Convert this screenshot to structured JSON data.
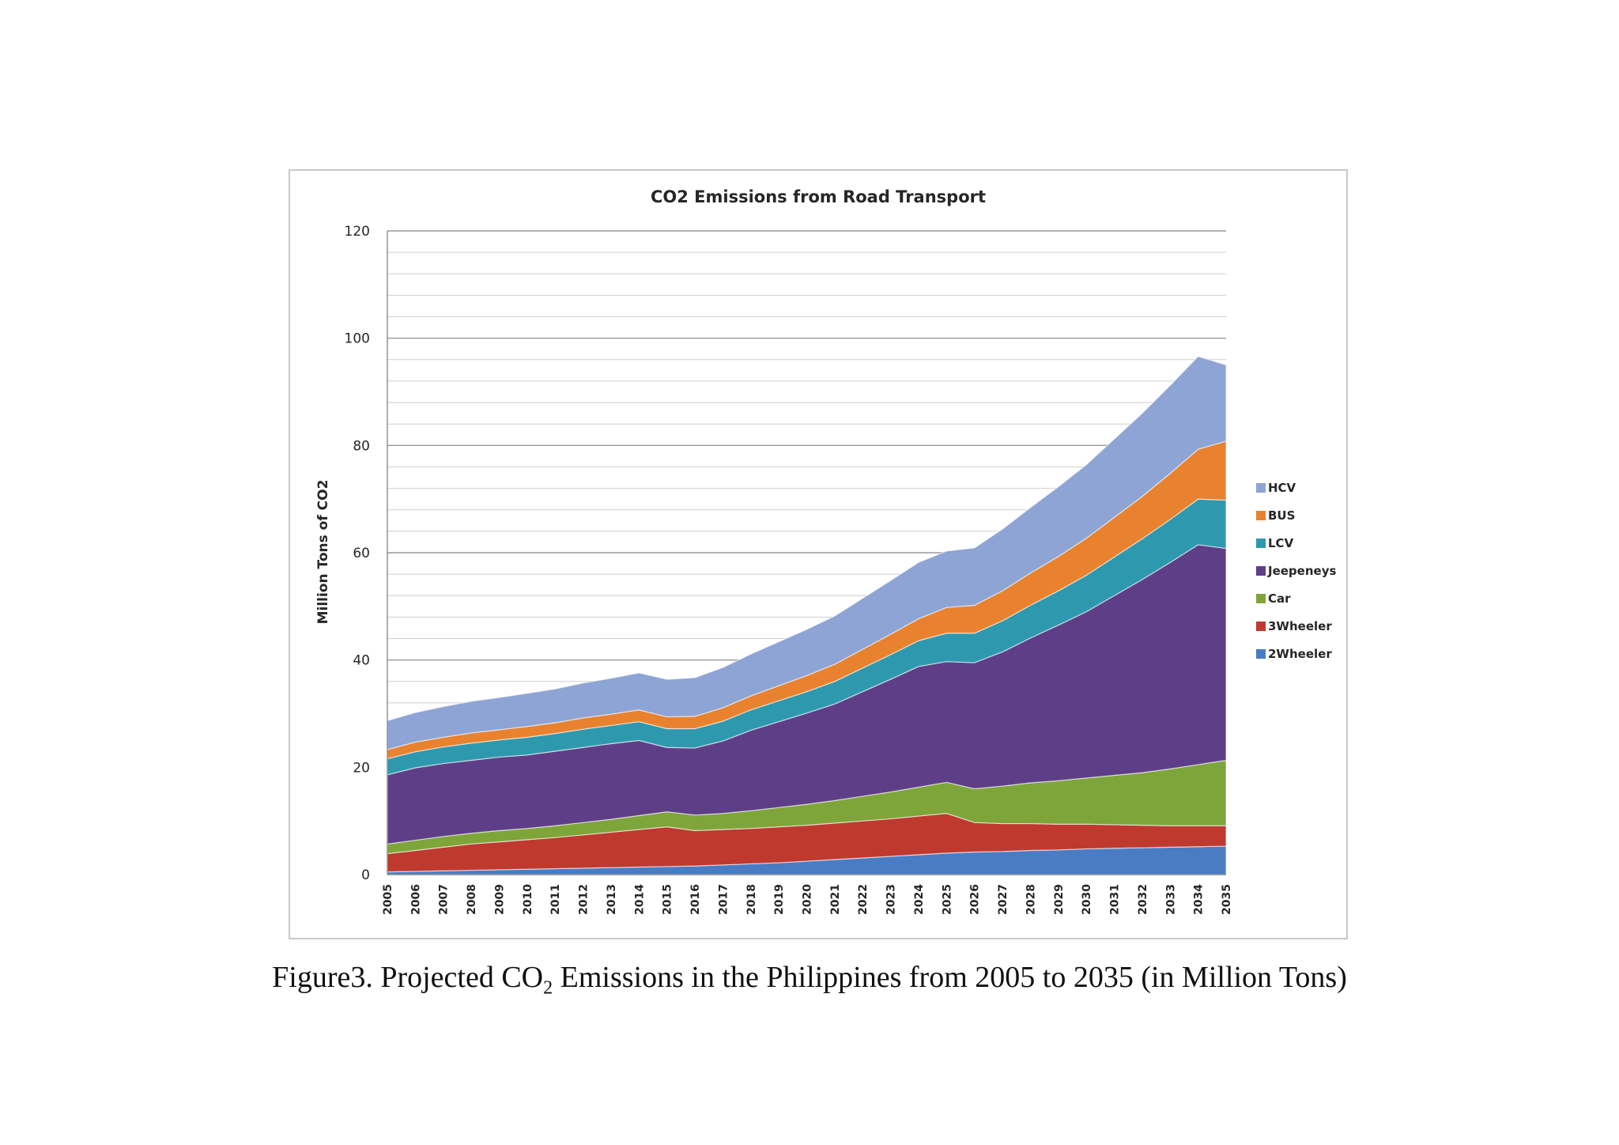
{
  "caption": {
    "prefix": "Figure3. Projected CO",
    "subscript": "2",
    "suffix": " Emissions in the Philippines from 2005 to 2035 (in Million Tons)"
  },
  "chart_data": {
    "type": "area",
    "stacked": true,
    "title": "CO2 Emissions from Road Transport",
    "xlabel": "",
    "ylabel": "Million Tons of CO2",
    "ylim": [
      0,
      120
    ],
    "yticks": [
      0,
      20,
      40,
      60,
      80,
      100,
      120
    ],
    "grid": true,
    "legend_position": "right",
    "categories": [
      "2005",
      "2006",
      "2007",
      "2008",
      "2009",
      "2010",
      "2011",
      "2012",
      "2013",
      "2014",
      "2015",
      "2016",
      "2017",
      "2018",
      "2019",
      "2020",
      "2021",
      "2022",
      "2023",
      "2024",
      "2025",
      "2026",
      "2027",
      "2028",
      "2029",
      "2030",
      "2031",
      "2032",
      "2033",
      "2034",
      "2035"
    ],
    "series": [
      {
        "name": "2Wheeler",
        "color": "#4a7cc4",
        "values": [
          0.5,
          0.6,
          0.7,
          0.8,
          0.9,
          1.0,
          1.1,
          1.2,
          1.3,
          1.4,
          1.5,
          1.6,
          1.8,
          2.0,
          2.2,
          2.5,
          2.8,
          3.1,
          3.4,
          3.7,
          4.0,
          4.2,
          4.3,
          4.5,
          4.6,
          4.8,
          4.9,
          5.0,
          5.1,
          5.2,
          5.3
        ]
      },
      {
        "name": "3Wheeler",
        "color": "#c0392f",
        "values": [
          3.4,
          3.9,
          4.4,
          4.9,
          5.2,
          5.5,
          5.8,
          6.2,
          6.6,
          7.0,
          7.4,
          6.6,
          6.6,
          6.6,
          6.7,
          6.7,
          6.8,
          6.9,
          7.0,
          7.2,
          7.4,
          5.5,
          5.2,
          5.0,
          4.8,
          4.6,
          4.4,
          4.2,
          4.0,
          3.9,
          3.8
        ]
      },
      {
        "name": "Car",
        "color": "#7ea539",
        "values": [
          1.8,
          1.9,
          2.0,
          2.0,
          2.1,
          2.1,
          2.2,
          2.3,
          2.4,
          2.6,
          2.8,
          2.9,
          3.0,
          3.3,
          3.6,
          3.9,
          4.2,
          4.6,
          5.0,
          5.4,
          5.8,
          6.3,
          7.0,
          7.6,
          8.1,
          8.6,
          9.2,
          9.8,
          10.6,
          11.4,
          12.2
        ]
      },
      {
        "name": "Jeepeneys",
        "color": "#5e3f87",
        "values": [
          12.9,
          13.5,
          13.6,
          13.6,
          13.7,
          13.7,
          13.9,
          14.0,
          14.1,
          14.0,
          12.0,
          12.5,
          13.5,
          15.0,
          16.0,
          17.0,
          18.0,
          19.5,
          21.0,
          22.5,
          22.5,
          23.5,
          25.0,
          27.0,
          29.0,
          31.0,
          33.5,
          36.0,
          38.5,
          41.0,
          39.5
        ]
      },
      {
        "name": "LCV",
        "color": "#2e99ae",
        "values": [
          3.0,
          3.0,
          3.1,
          3.2,
          3.2,
          3.3,
          3.3,
          3.4,
          3.4,
          3.5,
          3.5,
          3.6,
          3.7,
          3.8,
          3.9,
          4.0,
          4.2,
          4.4,
          4.6,
          4.8,
          5.3,
          5.5,
          5.8,
          6.1,
          6.4,
          6.8,
          7.2,
          7.6,
          8.0,
          8.5,
          9.0
        ]
      },
      {
        "name": "BUS",
        "color": "#e8822f",
        "values": [
          1.7,
          1.8,
          1.8,
          1.9,
          1.9,
          2.0,
          2.0,
          2.1,
          2.1,
          2.2,
          2.2,
          2.3,
          2.5,
          2.6,
          2.8,
          3.0,
          3.2,
          3.5,
          3.8,
          4.1,
          4.8,
          5.2,
          5.6,
          6.0,
          6.4,
          6.9,
          7.4,
          7.9,
          8.6,
          9.3,
          11.0
        ]
      },
      {
        "name": "HCV",
        "color": "#8da4d4",
        "values": [
          5.4,
          5.5,
          5.7,
          5.9,
          6.0,
          6.2,
          6.3,
          6.5,
          6.7,
          6.9,
          7.0,
          7.2,
          7.5,
          7.8,
          8.2,
          8.6,
          9.0,
          9.5,
          10.0,
          10.5,
          10.5,
          10.7,
          11.5,
          12.2,
          13.0,
          13.7,
          14.6,
          15.5,
          16.4,
          17.3,
          14.2
        ]
      }
    ]
  }
}
